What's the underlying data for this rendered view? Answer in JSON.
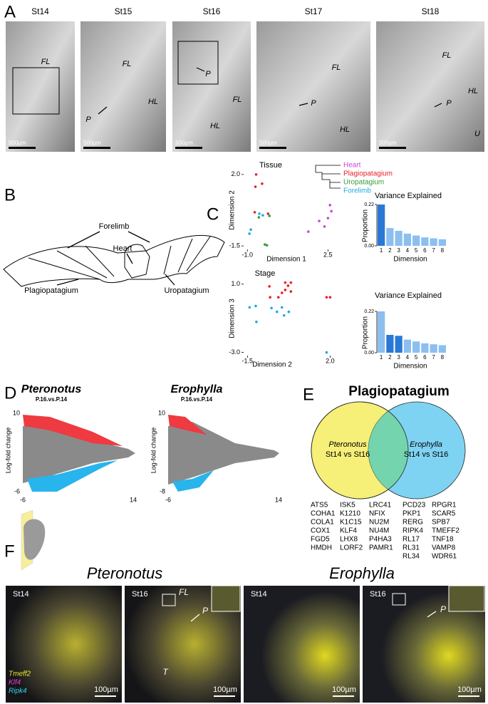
{
  "panel_a": {
    "label": "A",
    "images": [
      {
        "stage": "St14",
        "labels": [
          "FL"
        ],
        "scale": "500µm"
      },
      {
        "stage": "St15",
        "labels": [
          "FL",
          "HL",
          "P"
        ],
        "scale": "500µm"
      },
      {
        "stage": "St16",
        "labels": [
          "P",
          "FL",
          "HL"
        ],
        "scale": "500µm"
      },
      {
        "stage": "St17",
        "labels": [
          "FL",
          "P",
          "HL"
        ],
        "scale": "500µm"
      },
      {
        "stage": "St18",
        "labels": [
          "FL",
          "HL",
          "P",
          "U"
        ],
        "scale": "500µm"
      }
    ]
  },
  "panel_b": {
    "label": "B",
    "labels": [
      "Forelimb",
      "Heart",
      "Plagiopatagium",
      "Uropatagium"
    ]
  },
  "panel_c": {
    "label": "C",
    "tissue_plot": {
      "type": "scatter",
      "title": "Tissue",
      "xlabel": "Dimension 1",
      "ylabel": "Dimension 2",
      "xlim": [
        -1.1,
        2.8
      ],
      "ylim": [
        -1.6,
        2.1
      ],
      "xticks": [
        {
          "value": -1,
          "label": "-1.0"
        },
        2.5
      ],
      "yticks": [
        {
          "value": -1.5,
          "label": "-1.5"
        },
        {
          "value": 2,
          "label": "2.0"
        }
      ],
      "series": [
        {
          "name": "Heart",
          "color": "#cc44dd",
          "x": [
            2.59,
            2.65,
            2.5,
            2.12,
            2.35,
            1.65
          ],
          "y": [
            0.5,
            0.2,
            -0.14,
            -0.28,
            -0.55,
            -0.8
          ]
        },
        {
          "name": "Plagiopatagium",
          "color": "#e8202a",
          "x": [
            -0.62,
            -0.65,
            -0.36,
            -0.68,
            -0.1
          ],
          "y": [
            2.0,
            1.4,
            1.55,
            0.15,
            0.08
          ]
        },
        {
          "name": "Uropatagium",
          "color": "#3a9a3a",
          "x": [
            -0.5,
            -0.04,
            -0.15,
            -0.24
          ],
          "y": [
            -0.1,
            -0.03,
            -1.47,
            -1.43
          ]
        },
        {
          "name": "Forelimb",
          "color": "#22aadd",
          "x": [
            -0.48,
            -0.33,
            -0.91,
            -0.85
          ],
          "y": [
            0.08,
            0.0,
            -0.9,
            -0.7
          ]
        }
      ]
    },
    "stage_plot": {
      "type": "scatter",
      "title": "Stage",
      "xlabel": "Dimension 2",
      "ylabel": "Dimension 3",
      "xlim": [
        -1.6,
        2.2
      ],
      "ylim": [
        -3.1,
        1.2
      ],
      "xticks": [
        -1.5,
        {
          "value": 2,
          "label": "2.0"
        }
      ],
      "yticks": [
        {
          "value": -3,
          "label": "-3.0"
        },
        {
          "value": 1,
          "label": "1.0"
        }
      ],
      "series": [
        {
          "color": "#e8202a",
          "x": [
            -0.57,
            0.1,
            0.22,
            0.34,
            0.1,
            -0.04,
            0.34,
            -0.19,
            1.85,
            2.0,
            -0.54
          ],
          "y": [
            0.87,
            1.09,
            0.91,
            1.09,
            0.66,
            0.49,
            0.57,
            0.23,
            0.23,
            0.23,
            0.23
          ]
        },
        {
          "color": "#22aadd",
          "x": [
            -1.41,
            -1.15,
            -1.12,
            -0.48,
            -0.25,
            -0.04,
            0.25,
            0.05,
            1.85
          ],
          "y": [
            -0.36,
            -0.28,
            -1.21,
            -0.4,
            -0.62,
            -0.36,
            -0.62,
            -0.83,
            -3.0
          ]
        }
      ]
    },
    "tissue_variance": {
      "type": "bar",
      "title": "Variance Explained",
      "xlabel": "Dimension",
      "ylabel": "Proportion",
      "categories": [
        "1",
        "2",
        "3",
        "4",
        "5",
        "6",
        "7",
        "8"
      ],
      "values": [
        0.22,
        0.095,
        0.08,
        0.065,
        0.055,
        0.045,
        0.04,
        0.035
      ],
      "colors": [
        "#2a78d6",
        "#8cbff0",
        "#8cbff0",
        "#8cbff0",
        "#8cbff0",
        "#8cbff0",
        "#8cbff0",
        "#8cbff0"
      ],
      "ylim": [
        0,
        0.22
      ],
      "yticks": [
        {
          "value": 0,
          "label": "0.00"
        },
        0.22
      ]
    },
    "stage_variance": {
      "type": "bar",
      "title": "Variance Explained",
      "xlabel": "Dimension",
      "ylabel": "Proportion",
      "categories": [
        "1",
        "2",
        "3",
        "4",
        "5",
        "6",
        "7",
        "8"
      ],
      "values": [
        0.22,
        0.095,
        0.09,
        0.07,
        0.06,
        0.05,
        0.045,
        0.04
      ],
      "colors": [
        "#8cbff0",
        "#2a78d6",
        "#2a78d6",
        "#8cbff0",
        "#8cbff0",
        "#8cbff0",
        "#8cbff0",
        "#8cbff0"
      ],
      "ylim": [
        0,
        0.22
      ],
      "yticks": [
        {
          "value": 0,
          "label": "0.00"
        },
        0.22
      ]
    }
  },
  "panel_d": {
    "label": "D",
    "plots": [
      {
        "species": "Pteronotus",
        "comparison": "P.16.vs.P.14",
        "ylabel": "Log-fold change",
        "xticks": [
          -6,
          14
        ],
        "yticks": [
          10,
          -6
        ]
      },
      {
        "species": "Erophylla",
        "comparison": "P.16.vs.P.14",
        "ylabel": "Log-fold change",
        "xticks": [
          -6,
          14
        ],
        "yticks": [
          10,
          -8
        ]
      }
    ]
  },
  "panel_e": {
    "label": "E",
    "title": "Plagiopatagium",
    "left": {
      "species": "Pteronotus",
      "comparison": "St14 vs St16"
    },
    "right": {
      "species": "Erophylla",
      "comparison": "St14 vs St16"
    },
    "gene_columns": [
      [
        "ATS5",
        "COHA1",
        "COLA1",
        "COX1",
        "FGD5",
        "HMDH"
      ],
      [
        "ISK5",
        "K1210",
        "K1C15",
        "KLF4",
        "LHX8",
        "LORF2"
      ],
      [
        "LRC41",
        "NFIX",
        "NU2M",
        "NU4M",
        "P4HA3",
        "PAMR1"
      ],
      [
        "PCD23",
        "PKP1",
        "RERG",
        "RIPK4",
        "RL17",
        "RL31",
        "RL34"
      ],
      [
        "RPGR1",
        "SCAR5",
        "SPB7",
        "TMEFF2",
        "TNF18",
        "VAMP8",
        "WDR61"
      ]
    ]
  },
  "panel_f": {
    "label": "F",
    "species": [
      "Pteronotus",
      "Erophylla"
    ],
    "images": [
      {
        "stage": "St14",
        "labels": [],
        "scale": "100µm"
      },
      {
        "stage": "St16",
        "labels": [
          "FL",
          "P",
          "T"
        ],
        "scale": "100µm"
      },
      {
        "stage": "St14",
        "labels": [],
        "scale": "100µm"
      },
      {
        "stage": "St16",
        "labels": [
          "P"
        ],
        "scale": "100µm"
      }
    ],
    "stain_legend": [
      "Tmeff2",
      "Klf4",
      "Ripk4"
    ]
  }
}
